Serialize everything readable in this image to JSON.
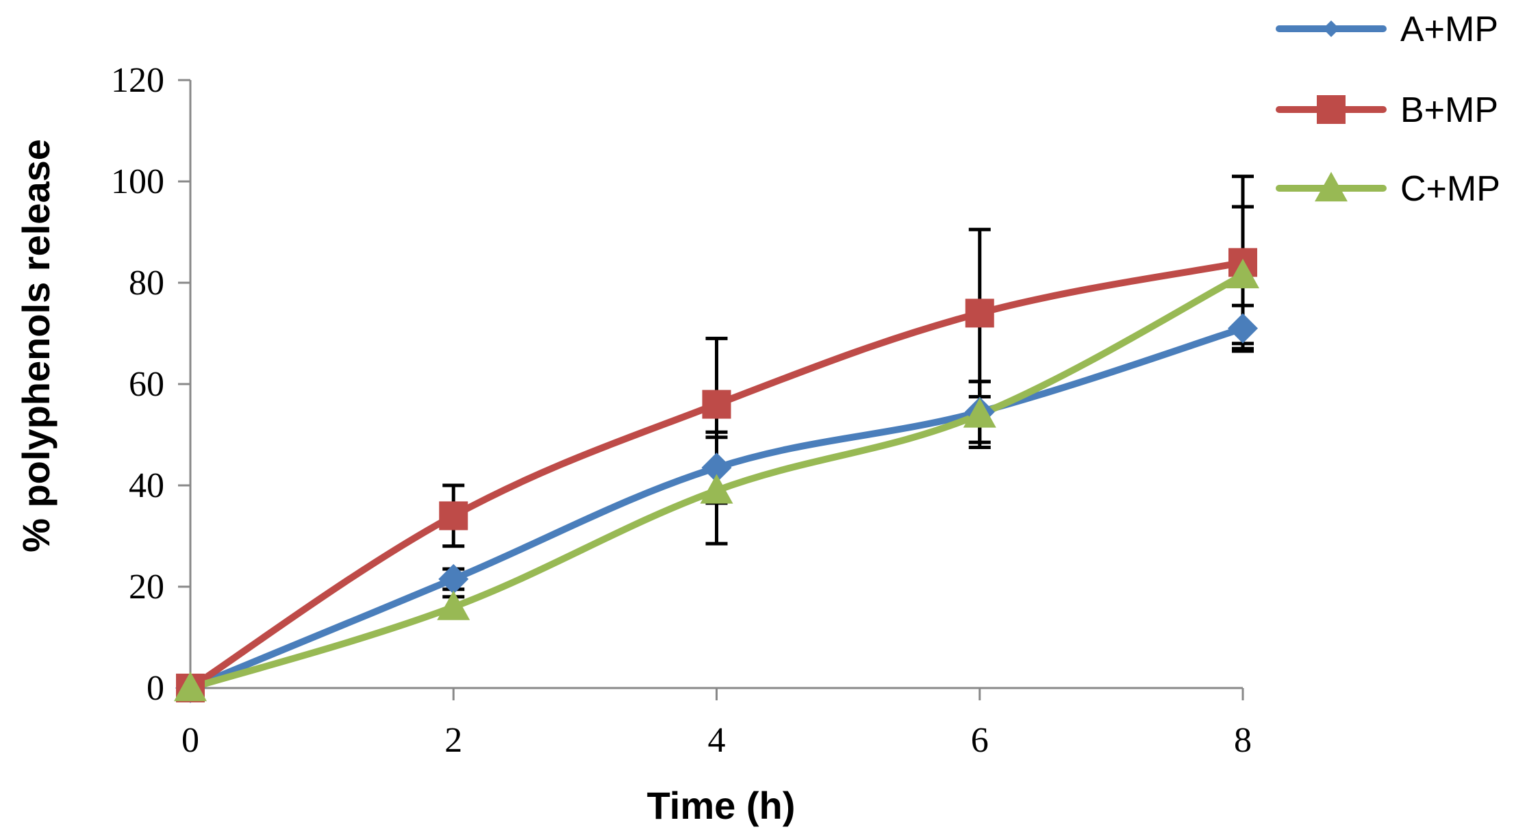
{
  "chart_data": {
    "type": "line",
    "title": "",
    "xlabel": "Time (h)",
    "ylabel": "% polyphenols release",
    "x": [
      0,
      2,
      4,
      6,
      8
    ],
    "x_ticks": [
      "0",
      "2",
      "4",
      "6",
      "8"
    ],
    "y_ticks": [
      "0",
      "20",
      "40",
      "60",
      "80",
      "100",
      "120"
    ],
    "xlim": [
      0,
      8
    ],
    "ylim": [
      0,
      120
    ],
    "grid": false,
    "legend_position": "top-right",
    "series": [
      {
        "name": "A+MP",
        "color": "#4a7ebb",
        "marker": "diamond",
        "values": [
          0,
          21.5,
          43.5,
          54.5,
          71
        ],
        "error": [
          0,
          2,
          7,
          6,
          4.5
        ]
      },
      {
        "name": "B+MP",
        "color": "#be4b48",
        "marker": "square",
        "values": [
          0,
          34,
          56,
          74,
          84
        ],
        "error": [
          0,
          6,
          13,
          16.5,
          17
        ]
      },
      {
        "name": "C+MP",
        "color": "#98b954",
        "marker": "triangle",
        "values": [
          0,
          16,
          39,
          54,
          81.5
        ],
        "error": [
          0,
          2,
          10.5,
          6.5,
          13.5
        ]
      }
    ]
  }
}
